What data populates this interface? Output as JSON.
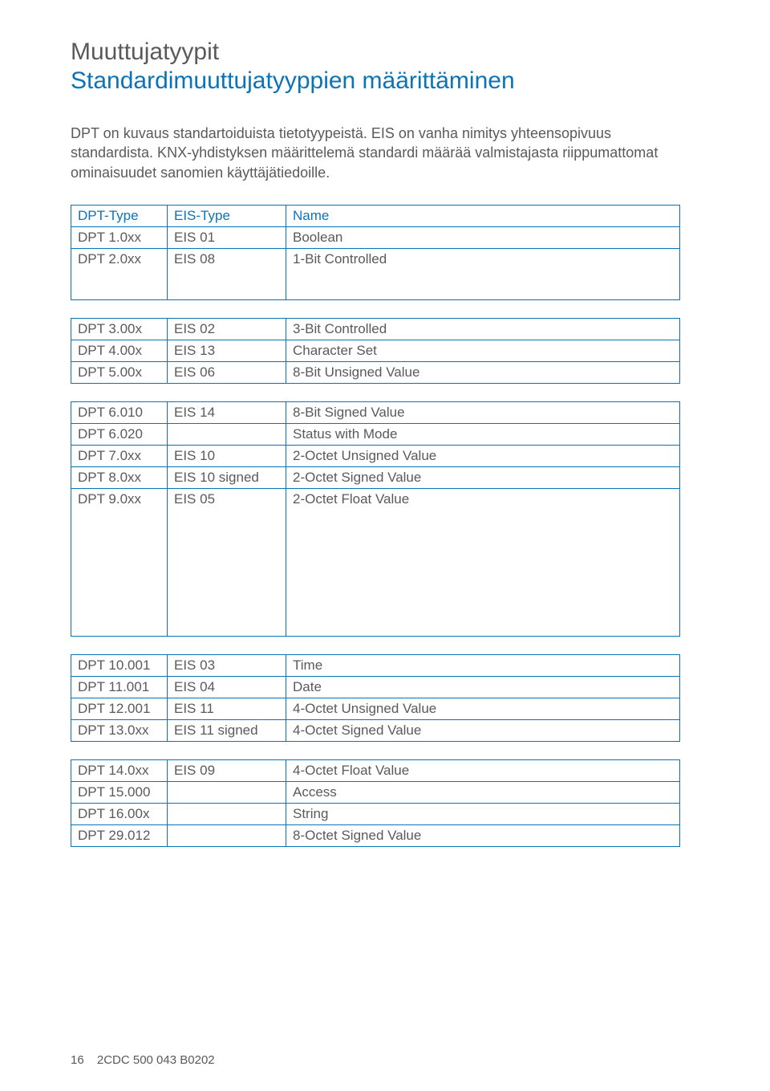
{
  "title1": "Muuttujatyypit",
  "title2": "Standardimuuttujatyyppien määrittäminen",
  "intro": "DPT on kuvaus standartoiduista tietotyypeistä. EIS on vanha nimitys yhteensopivuus standardista. KNX-yhdistyksen määrittelemä standardi määrää valmistajasta riippumattomat ominaisuudet sanomien käyttäjätiedoille.",
  "columns": {
    "dpt": "DPT-Type",
    "eis": "EIS-Type",
    "name": "Name"
  },
  "t1": [
    [
      "DPT 1.0xx",
      "EIS 01",
      "Boolean"
    ],
    [
      "DPT 2.0xx",
      "EIS 08",
      "1-Bit Controlled"
    ]
  ],
  "t2": [
    [
      "DPT 3.00x",
      "EIS 02",
      "3-Bit Controlled"
    ],
    [
      "DPT 4.00x",
      "EIS 13",
      "Character Set"
    ],
    [
      "DPT 5.00x",
      "EIS 06",
      "8-Bit Unsigned Value"
    ]
  ],
  "t3": [
    [
      "DPT 6.010",
      "EIS 14",
      "8-Bit Signed Value"
    ],
    [
      "DPT 6.020",
      "",
      "Status with Mode"
    ],
    [
      "DPT 7.0xx",
      "EIS 10",
      "2-Octet Unsigned Value"
    ],
    [
      "DPT 8.0xx",
      "EIS 10 signed",
      "2-Octet Signed Value"
    ],
    [
      "DPT 9.0xx",
      "EIS 05",
      "2-Octet Float Value"
    ]
  ],
  "t4": [
    [
      "DPT 10.001",
      "EIS 03",
      "Time"
    ],
    [
      "DPT 11.001",
      "EIS 04",
      "Date"
    ],
    [
      "DPT 12.001",
      "EIS 11",
      "4-Octet Unsigned Value"
    ],
    [
      "DPT 13.0xx",
      "EIS 11 signed",
      "4-Octet Signed Value"
    ]
  ],
  "t5": [
    [
      "DPT 14.0xx",
      "EIS 09",
      "4-Octet Float Value"
    ],
    [
      "DPT 15.000",
      "",
      "Access"
    ],
    [
      "DPT 16.00x",
      "",
      "String"
    ],
    [
      "DPT 29.012",
      "",
      "8-Octet Signed Value"
    ]
  ],
  "footer": {
    "page": "16",
    "code": "2CDC 500 043 B0202"
  }
}
